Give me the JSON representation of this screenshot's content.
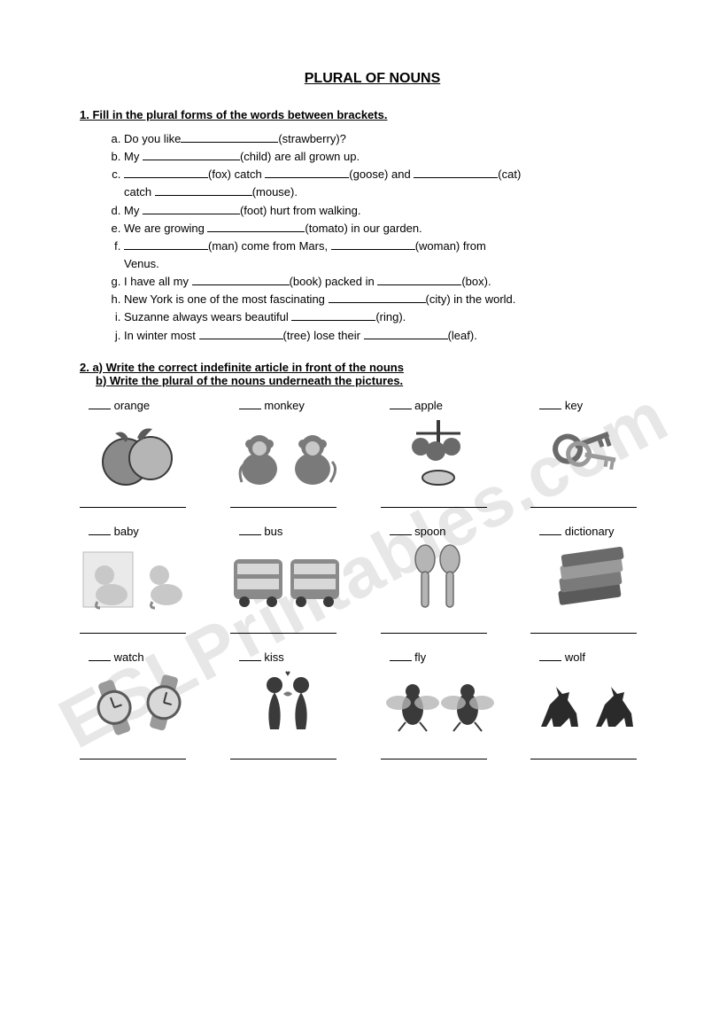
{
  "title": "PLURAL OF NOUNS",
  "watermark": "ESLPrintables.com",
  "ex1": {
    "instruction": "1. Fill in the plural forms of the words between brackets.",
    "items": {
      "a_pre": "Do you like",
      "a_hint": "(strawberry)?",
      "b_pre": "My ",
      "b_hint": "(child) are all grown up.",
      "c_hint1": "(fox) catch ",
      "c_hint2": "(goose) and ",
      "c_hint3": "(cat)",
      "c_line2": "catch ",
      "c_hint4": "(mouse).",
      "d_pre": "My ",
      "d_hint": "(foot) hurt from walking.",
      "e_pre": "We are growing ",
      "e_hint": "(tomato) in our garden.",
      "f_hint1": "(man) come from Mars, ",
      "f_hint2": "(woman) from",
      "f_line2": "Venus.",
      "g_pre": "I have all my ",
      "g_hint1": "(book) packed in ",
      "g_hint2": "(box).",
      "h_pre": "New York is one of the most fascinating ",
      "h_hint": "(city) in the world.",
      "i_pre": "Suzanne always wears beautiful ",
      "i_hint": "(ring).",
      "j_pre": "In winter most ",
      "j_hint1": "(tree) lose their ",
      "j_hint2": "(leaf)."
    }
  },
  "ex2": {
    "instruction_a": "2. a) Write the correct indefinite article in front of the nouns",
    "instruction_b": "b) Write the plural of the nouns underneath the pictures.",
    "cells": [
      {
        "word": "orange",
        "icon": "orange"
      },
      {
        "word": "monkey",
        "icon": "monkey"
      },
      {
        "word": "apple",
        "icon": "apple"
      },
      {
        "word": "key",
        "icon": "key"
      },
      {
        "word": "baby",
        "icon": "baby"
      },
      {
        "word": "bus",
        "icon": "bus"
      },
      {
        "word": "spoon",
        "icon": "spoon"
      },
      {
        "word": "dictionary",
        "icon": "dictionary"
      },
      {
        "word": "watch",
        "icon": "watch"
      },
      {
        "word": "kiss",
        "icon": "kiss"
      },
      {
        "word": "fly",
        "icon": "fly"
      },
      {
        "word": "wolf",
        "icon": "wolf"
      }
    ]
  },
  "colors": {
    "text": "#000000",
    "background": "#ffffff",
    "watermark": "#e7e7e7",
    "clipart_gray": "#8a8a8a",
    "clipart_dark": "#3a3a3a",
    "clipart_light": "#c8c8c8"
  }
}
